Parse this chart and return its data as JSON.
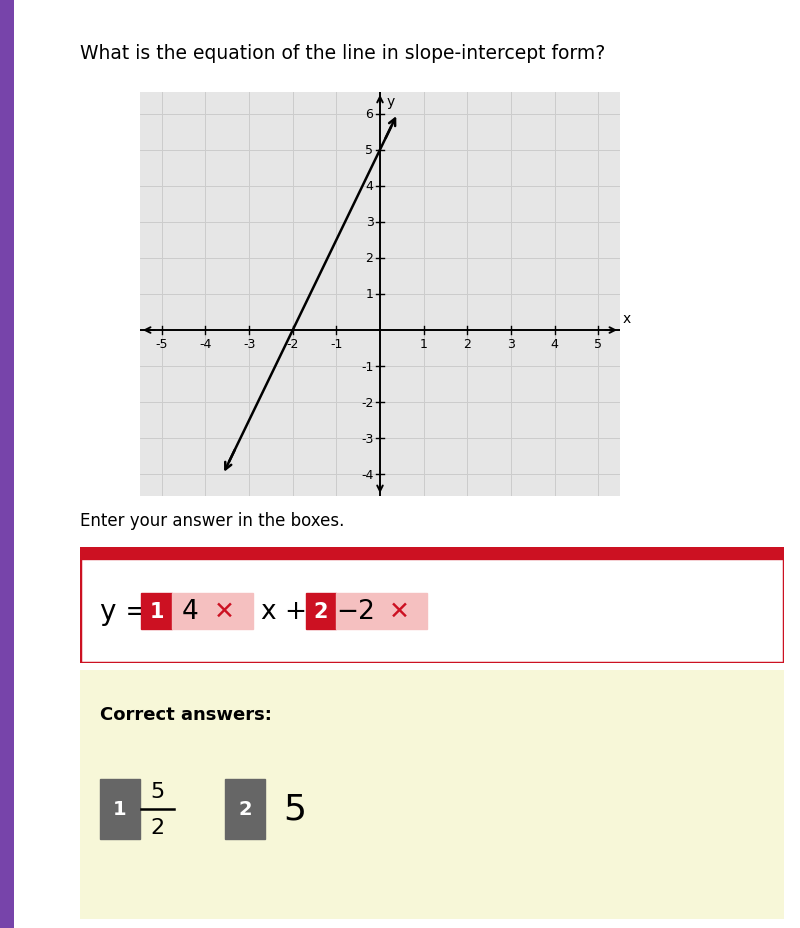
{
  "title": "What is the equation of the line in slope-intercept form?",
  "title_fontsize": 13.5,
  "background_color": "#ffffff",
  "graph": {
    "xlim": [
      -5.5,
      5.5
    ],
    "ylim": [
      -4.6,
      6.6
    ],
    "xticks": [
      -5,
      -4,
      -3,
      -2,
      -1,
      1,
      2,
      3,
      4,
      5
    ],
    "yticks": [
      -4,
      -3,
      -2,
      -1,
      1,
      2,
      3,
      4,
      5,
      6
    ],
    "xlabel": "x",
    "ylabel": "y",
    "grid_color": "#cccccc",
    "axis_color": "#000000",
    "slope": 2.5,
    "intercept": 5,
    "line_x_start": -3.6,
    "line_x_end": 0.4,
    "line_color": "#000000",
    "line_width": 1.8,
    "graph_bg": "#e6e6e6",
    "tick_fontsize": 9
  },
  "answer_section": {
    "border_color": "#cc1122",
    "bg_color": "#ffffff",
    "box1_bg": "#cc1122",
    "box1_text": "1",
    "box1_text_color": "#ffffff",
    "wrong_val1": "4",
    "box2_bg": "#cc1122",
    "box2_text": "2",
    "box2_text_color": "#ffffff",
    "wrong_val2": "−2",
    "wrong_highlight_bg": "#f5c0c0",
    "x_mark_color": "#cc1122"
  },
  "correct_section": {
    "bg_color": "#f7f7d8",
    "label": "Correct answers:",
    "box1_bg": "#666666",
    "box1_text": "1",
    "box1_text_color": "#ffffff",
    "box2_bg": "#666666",
    "box2_text": "2",
    "box2_text_color": "#ffffff",
    "answer2": "5"
  },
  "enter_text": "Enter your answer in the boxes.",
  "left_bar_color": "#7744aa"
}
